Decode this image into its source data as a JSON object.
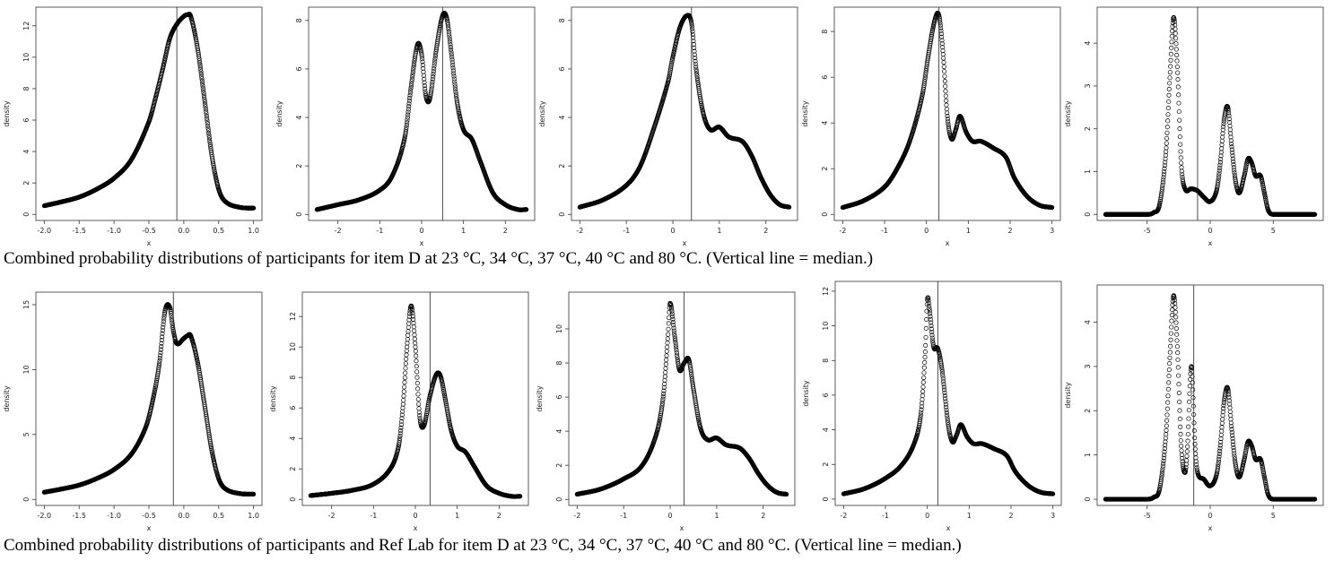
{
  "captions": {
    "top": "Combined probability distributions of participants for item D at 23 °C, 34 °C, 37 °C, 40 °C and 80 °C. (Vertical line = median.)",
    "bottom": "Combined probability distributions of participants and Ref Lab for item D at 23 °C, 34 °C, 37 °C, 40 °C and 80 °C. (Vertical line = median.)"
  },
  "chart_data": [
    {
      "type": "line",
      "row": "top",
      "temp": "23 °C",
      "xlabel": "x",
      "ylabel": "density",
      "xlim": [
        -2.0,
        1.0
      ],
      "ylim": [
        0,
        12.8
      ],
      "xticks": [
        -2.0,
        -1.5,
        -1.0,
        -0.5,
        0.0,
        0.5,
        1.0
      ],
      "xtick_labels": [
        "-2.0",
        "-1.5",
        "-1.0",
        "-0.5",
        "0.0",
        "0.5",
        "1.0"
      ],
      "yticks": [
        0,
        2,
        4,
        6,
        8,
        10,
        12
      ],
      "ytick_labels": [
        "0",
        "2",
        "4",
        "6",
        "8",
        "10",
        "12"
      ],
      "median": -0.1,
      "x": [
        -2.0,
        -1.75,
        -1.5,
        -1.25,
        -1.0,
        -0.75,
        -0.5,
        -0.4,
        -0.3,
        -0.2,
        -0.1,
        0.0,
        0.05,
        0.1,
        0.2,
        0.3,
        0.4,
        0.5,
        0.6,
        0.8,
        1.0
      ],
      "y": [
        0.55,
        0.8,
        1.1,
        1.6,
        2.3,
        3.5,
        5.9,
        7.5,
        9.3,
        11.2,
        12.1,
        12.6,
        12.7,
        12.6,
        10.5,
        7.2,
        3.8,
        1.6,
        0.8,
        0.45,
        0.4
      ]
    },
    {
      "type": "line",
      "row": "top",
      "temp": "34 °C",
      "xlabel": "x",
      "ylabel": "density",
      "xlim": [
        -2.5,
        2.5
      ],
      "ylim": [
        0,
        8.3
      ],
      "xticks": [
        -2,
        -1,
        0,
        1,
        2
      ],
      "xtick_labels": [
        "-2",
        "-1",
        "0",
        "1",
        "2"
      ],
      "yticks": [
        0,
        2,
        4,
        6,
        8
      ],
      "ytick_labels": [
        "0",
        "2",
        "4",
        "6",
        "8"
      ],
      "median": 0.5,
      "x": [
        -2.5,
        -2.0,
        -1.5,
        -1.0,
        -0.7,
        -0.4,
        -0.25,
        -0.1,
        0.0,
        0.1,
        0.2,
        0.35,
        0.5,
        0.6,
        0.7,
        0.85,
        1.0,
        1.2,
        1.4,
        1.7,
        2.0,
        2.3,
        2.5
      ],
      "y": [
        0.2,
        0.4,
        0.6,
        1.0,
        1.6,
        3.2,
        5.3,
        7.0,
        6.6,
        4.9,
        4.8,
        6.8,
        8.2,
        8.1,
        6.8,
        4.6,
        3.5,
        3.1,
        2.2,
        0.9,
        0.4,
        0.2,
        0.2
      ]
    },
    {
      "type": "line",
      "row": "top",
      "temp": "37 °C",
      "xlabel": "x",
      "ylabel": "density",
      "xlim": [
        -2.0,
        2.5
      ],
      "ylim": [
        0,
        8.3
      ],
      "xticks": [
        -2,
        -1,
        0,
        1,
        2
      ],
      "xtick_labels": [
        "-2",
        "-1",
        "0",
        "1",
        "2"
      ],
      "yticks": [
        0,
        2,
        4,
        6,
        8
      ],
      "ytick_labels": [
        "0",
        "2",
        "4",
        "6",
        "8"
      ],
      "median": 0.4,
      "x": [
        -2.0,
        -1.5,
        -1.0,
        -0.7,
        -0.4,
        -0.1,
        0.0,
        0.15,
        0.3,
        0.4,
        0.5,
        0.65,
        0.8,
        1.0,
        1.2,
        1.5,
        1.7,
        1.9,
        2.1,
        2.3,
        2.5
      ],
      "y": [
        0.3,
        0.6,
        1.2,
        2.0,
        3.6,
        5.5,
        6.5,
        7.7,
        8.2,
        7.9,
        6.0,
        4.2,
        3.5,
        3.6,
        3.2,
        3.0,
        2.4,
        1.5,
        0.8,
        0.4,
        0.3
      ]
    },
    {
      "type": "line",
      "row": "top",
      "temp": "40 °C",
      "xlabel": "x",
      "ylabel": "density",
      "xlim": [
        -2.0,
        3.0
      ],
      "ylim": [
        0,
        8.8
      ],
      "xticks": [
        -2,
        -1,
        0,
        1,
        2,
        3
      ],
      "xtick_labels": [
        "-2",
        "-1",
        "0",
        "1",
        "2",
        "3"
      ],
      "yticks": [
        0,
        2,
        4,
        6,
        8
      ],
      "ytick_labels": [
        "0",
        "2",
        "4",
        "6",
        "8"
      ],
      "median": 0.3,
      "x": [
        -2.0,
        -1.5,
        -1.0,
        -0.7,
        -0.4,
        -0.1,
        0.05,
        0.2,
        0.3,
        0.4,
        0.5,
        0.6,
        0.7,
        0.8,
        0.95,
        1.1,
        1.3,
        1.6,
        1.9,
        2.1,
        2.4,
        2.7,
        3.0
      ],
      "y": [
        0.3,
        0.6,
        1.2,
        2.0,
        3.2,
        5.2,
        7.0,
        8.5,
        8.7,
        7.0,
        4.3,
        3.3,
        3.7,
        4.3,
        3.6,
        3.2,
        3.2,
        2.9,
        2.5,
        1.6,
        0.8,
        0.4,
        0.3
      ]
    },
    {
      "type": "line",
      "row": "top",
      "temp": "80 °C",
      "xlabel": "x",
      "ylabel": "density",
      "xlim": [
        -8.3,
        8.3
      ],
      "ylim": [
        0,
        4.7
      ],
      "xticks": [
        -5,
        0,
        5
      ],
      "xtick_labels": [
        "-5",
        "0",
        "5"
      ],
      "yticks": [
        0,
        1,
        2,
        3,
        4
      ],
      "ytick_labels": [
        "0",
        "1",
        "2",
        "3",
        "4"
      ],
      "median": -1.0,
      "x": [
        -8,
        -5,
        -4.5,
        -4.0,
        -3.5,
        -3.2,
        -2.9,
        -2.6,
        -2.3,
        -2.0,
        -1.5,
        -1.0,
        -0.5,
        0.0,
        0.5,
        0.8,
        1.1,
        1.4,
        1.7,
        2.0,
        2.3,
        2.7,
        3.0,
        3.3,
        3.6,
        4.0,
        4.3,
        4.6,
        5.0,
        8.0
      ],
      "y": [
        0,
        0,
        0.04,
        0.25,
        1.5,
        3.2,
        4.6,
        3.4,
        1.2,
        0.6,
        0.6,
        0.55,
        0.4,
        0.3,
        0.55,
        1.2,
        2.2,
        2.5,
        1.6,
        0.8,
        0.5,
        0.9,
        1.3,
        1.2,
        0.9,
        0.9,
        0.5,
        0.1,
        0,
        0
      ]
    },
    {
      "type": "line",
      "row": "bottom",
      "temp": "23 °C",
      "xlabel": "x",
      "ylabel": "density",
      "xlim": [
        -2.0,
        1.0
      ],
      "ylim": [
        0,
        15.5
      ],
      "xticks": [
        -2.0,
        -1.5,
        -1.0,
        -0.5,
        0.0,
        0.5,
        1.0
      ],
      "xtick_labels": [
        "-2.0",
        "-1.5",
        "-1.0",
        "-0.5",
        "0.0",
        "0.5",
        "1.0"
      ],
      "yticks": [
        0,
        5,
        10,
        15
      ],
      "ytick_labels": [
        "0",
        "5",
        "10",
        "15"
      ],
      "median": -0.15,
      "x": [
        -2.0,
        -1.75,
        -1.5,
        -1.25,
        -1.0,
        -0.75,
        -0.55,
        -0.45,
        -0.35,
        -0.27,
        -0.2,
        -0.15,
        -0.1,
        0.0,
        0.05,
        0.1,
        0.2,
        0.3,
        0.4,
        0.5,
        0.6,
        0.8,
        1.0
      ],
      "y": [
        0.55,
        0.8,
        1.1,
        1.6,
        2.3,
        3.5,
        5.5,
        7.5,
        10.5,
        14.5,
        14.8,
        13.0,
        12.0,
        12.4,
        12.6,
        12.6,
        10.5,
        7.2,
        3.8,
        1.6,
        0.8,
        0.45,
        0.4
      ]
    },
    {
      "type": "line",
      "row": "bottom",
      "temp": "34 °C",
      "xlabel": "x",
      "ylabel": "density",
      "xlim": [
        -2.5,
        2.5
      ],
      "ylim": [
        0,
        13.2
      ],
      "xticks": [
        -2,
        -1,
        0,
        1,
        2
      ],
      "xtick_labels": [
        "-2",
        "-1",
        "0",
        "1",
        "2"
      ],
      "yticks": [
        0,
        2,
        4,
        6,
        8,
        10,
        12
      ],
      "ytick_labels": [
        "0",
        "2",
        "4",
        "6",
        "8",
        "10",
        "12"
      ],
      "median": 0.35,
      "x": [
        -2.5,
        -2.0,
        -1.5,
        -1.0,
        -0.6,
        -0.4,
        -0.3,
        -0.2,
        -0.1,
        0.0,
        0.1,
        0.2,
        0.35,
        0.5,
        0.6,
        0.7,
        0.85,
        1.0,
        1.2,
        1.4,
        1.7,
        2.0,
        2.3,
        2.5
      ],
      "y": [
        0.25,
        0.4,
        0.6,
        1.0,
        2.0,
        3.5,
        6.0,
        10.0,
        12.7,
        10.0,
        5.5,
        4.8,
        6.8,
        8.2,
        8.1,
        6.8,
        4.6,
        3.5,
        3.1,
        2.2,
        0.9,
        0.4,
        0.2,
        0.2
      ]
    },
    {
      "type": "line",
      "row": "bottom",
      "temp": "37 °C",
      "xlabel": "x",
      "ylabel": "density",
      "xlim": [
        -2.0,
        2.5
      ],
      "ylim": [
        0,
        11.8
      ],
      "xticks": [
        -2,
        -1,
        0,
        1,
        2
      ],
      "xtick_labels": [
        "-2",
        "-1",
        "0",
        "1",
        "2"
      ],
      "yticks": [
        0,
        2,
        4,
        6,
        8,
        10
      ],
      "ytick_labels": [
        "0",
        "2",
        "4",
        "6",
        "8",
        "10"
      ],
      "median": 0.3,
      "x": [
        -2.0,
        -1.5,
        -1.0,
        -0.6,
        -0.3,
        -0.15,
        -0.05,
        0.0,
        0.1,
        0.2,
        0.3,
        0.4,
        0.5,
        0.65,
        0.8,
        1.0,
        1.2,
        1.5,
        1.7,
        1.9,
        2.1,
        2.3,
        2.5
      ],
      "y": [
        0.3,
        0.6,
        1.2,
        2.0,
        3.8,
        6.0,
        9.5,
        11.5,
        9.5,
        7.6,
        8.0,
        8.2,
        6.5,
        4.2,
        3.5,
        3.6,
        3.2,
        3.0,
        2.4,
        1.5,
        0.8,
        0.4,
        0.3
      ]
    },
    {
      "type": "line",
      "row": "bottom",
      "temp": "40 °C",
      "xlabel": "x",
      "ylabel": "density",
      "xlim": [
        -2.0,
        3.0
      ],
      "ylim": [
        0,
        12.2
      ],
      "xticks": [
        -2,
        -1,
        0,
        1,
        2,
        3
      ],
      "xtick_labels": [
        "-2",
        "-1",
        "0",
        "1",
        "2",
        "3"
      ],
      "yticks": [
        0,
        2,
        4,
        6,
        8,
        10,
        12
      ],
      "ytick_labels": [
        "0",
        "2",
        "4",
        "6",
        "8",
        "10",
        "12"
      ],
      "median": 0.25,
      "x": [
        -2.0,
        -1.5,
        -1.0,
        -0.6,
        -0.3,
        -0.15,
        -0.05,
        0.0,
        0.05,
        0.15,
        0.25,
        0.35,
        0.5,
        0.6,
        0.7,
        0.8,
        0.95,
        1.1,
        1.3,
        1.6,
        1.9,
        2.1,
        2.4,
        2.7,
        3.0
      ],
      "y": [
        0.3,
        0.6,
        1.2,
        2.0,
        3.3,
        5.0,
        8.5,
        11.5,
        11.0,
        8.8,
        8.7,
        7.5,
        4.3,
        3.3,
        3.7,
        4.3,
        3.6,
        3.2,
        3.2,
        2.9,
        2.5,
        1.6,
        0.8,
        0.4,
        0.3
      ]
    },
    {
      "type": "line",
      "row": "bottom",
      "temp": "80 °C",
      "xlabel": "x",
      "ylabel": "density",
      "xlim": [
        -8.3,
        8.3
      ],
      "ylim": [
        0,
        4.7
      ],
      "xticks": [
        -5,
        0,
        5
      ],
      "xtick_labels": [
        "-5",
        "0",
        "5"
      ],
      "yticks": [
        0,
        1,
        2,
        3,
        4
      ],
      "ytick_labels": [
        "0",
        "1",
        "2",
        "3",
        "4"
      ],
      "median": -1.3,
      "x": [
        -8,
        -5,
        -4.5,
        -4.0,
        -3.5,
        -3.2,
        -2.9,
        -2.6,
        -2.3,
        -2.0,
        -1.8,
        -1.5,
        -1.2,
        -1.0,
        -0.5,
        0.0,
        0.5,
        0.8,
        1.1,
        1.4,
        1.7,
        2.0,
        2.3,
        2.7,
        3.0,
        3.3,
        3.6,
        4.0,
        4.3,
        4.6,
        5.0,
        8.0
      ],
      "y": [
        0,
        0,
        0.04,
        0.25,
        1.5,
        3.2,
        4.6,
        3.4,
        1.2,
        0.6,
        1.2,
        3.0,
        1.2,
        0.6,
        0.45,
        0.3,
        0.55,
        1.2,
        2.2,
        2.5,
        1.6,
        0.8,
        0.5,
        0.9,
        1.3,
        1.2,
        0.9,
        0.9,
        0.5,
        0.1,
        0,
        0
      ]
    }
  ]
}
